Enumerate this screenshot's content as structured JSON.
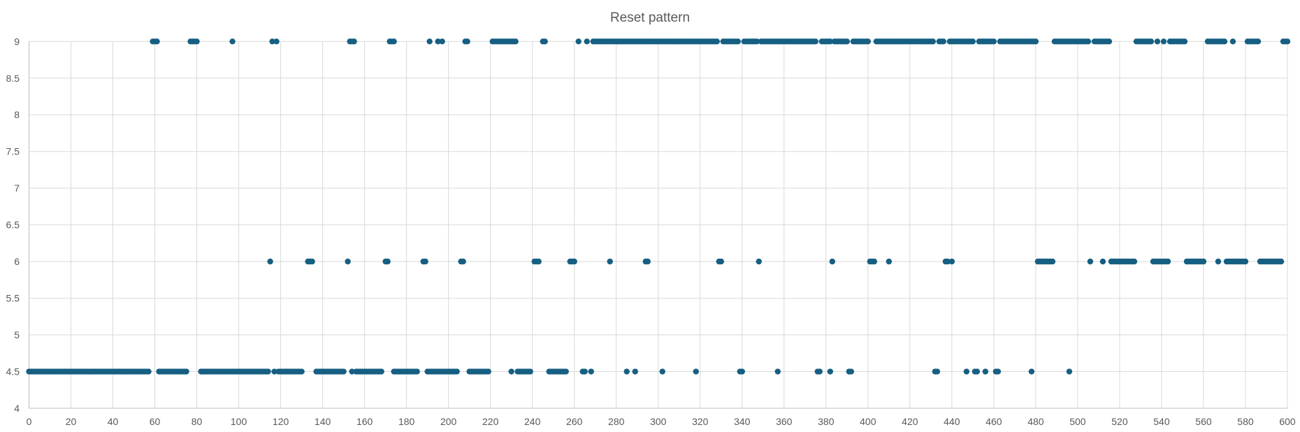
{
  "chart_data": {
    "type": "scatter",
    "title": "Reset pattern",
    "xlabel": "",
    "ylabel": "",
    "xlim": [
      0,
      600
    ],
    "ylim": [
      4,
      9
    ],
    "x_ticks": [
      "0",
      "20",
      "40",
      "60",
      "80",
      "100",
      "120",
      "140",
      "160",
      "180",
      "200",
      "220",
      "240",
      "260",
      "280",
      "300",
      "320",
      "340",
      "360",
      "380",
      "400",
      "420",
      "440",
      "460",
      "480",
      "500",
      "520",
      "540",
      "560",
      "580",
      "600"
    ],
    "y_ticks": [
      "4",
      "4.5",
      "5",
      "5.5",
      "6",
      "6.5",
      "7",
      "7.5",
      "8",
      "8.5",
      "9"
    ],
    "grid": true,
    "legend": "none",
    "marker_color": "#165f82",
    "series": [
      {
        "y": 9,
        "x_runs": [
          [
            59,
            61
          ],
          [
            77,
            80
          ],
          [
            97,
            97
          ],
          [
            116,
            116
          ],
          [
            118,
            118
          ],
          [
            153,
            155
          ],
          [
            172,
            174
          ],
          [
            191,
            191
          ],
          [
            195,
            195
          ],
          [
            197,
            197
          ],
          [
            208,
            209
          ],
          [
            221,
            232
          ],
          [
            245,
            246
          ],
          [
            262,
            262
          ],
          [
            266,
            266
          ],
          [
            269,
            328
          ],
          [
            331,
            338
          ],
          [
            341,
            347
          ],
          [
            349,
            375
          ],
          [
            378,
            382
          ],
          [
            384,
            390
          ],
          [
            393,
            400
          ],
          [
            404,
            431
          ],
          [
            434,
            436
          ],
          [
            439,
            450
          ],
          [
            453,
            460
          ],
          [
            463,
            480
          ],
          [
            489,
            505
          ],
          [
            508,
            515
          ],
          [
            528,
            535
          ],
          [
            538,
            538
          ],
          [
            541,
            541
          ],
          [
            544,
            551
          ],
          [
            562,
            570
          ],
          [
            574,
            574
          ],
          [
            581,
            586
          ],
          [
            598,
            600
          ]
        ]
      },
      {
        "y": 6,
        "x_runs": [
          [
            115,
            115
          ],
          [
            133,
            135
          ],
          [
            152,
            152
          ],
          [
            170,
            171
          ],
          [
            188,
            189
          ],
          [
            206,
            207
          ],
          [
            241,
            243
          ],
          [
            258,
            260
          ],
          [
            277,
            277
          ],
          [
            294,
            295
          ],
          [
            329,
            330
          ],
          [
            348,
            348
          ],
          [
            383,
            383
          ],
          [
            401,
            403
          ],
          [
            410,
            410
          ],
          [
            437,
            438
          ],
          [
            440,
            440
          ],
          [
            481,
            488
          ],
          [
            506,
            506
          ],
          [
            512,
            512
          ],
          [
            516,
            527
          ],
          [
            536,
            543
          ],
          [
            552,
            560
          ],
          [
            567,
            567
          ],
          [
            571,
            580
          ],
          [
            587,
            597
          ]
        ]
      },
      {
        "y": 4.5,
        "x_runs": [
          [
            0,
            57
          ],
          [
            62,
            75
          ],
          [
            82,
            114
          ],
          [
            117,
            117
          ],
          [
            119,
            130
          ],
          [
            137,
            150
          ],
          [
            154,
            154
          ],
          [
            156,
            168
          ],
          [
            174,
            185
          ],
          [
            190,
            204
          ],
          [
            210,
            219
          ],
          [
            230,
            230
          ],
          [
            233,
            239
          ],
          [
            248,
            256
          ],
          [
            264,
            265
          ],
          [
            268,
            268
          ],
          [
            285,
            285
          ],
          [
            289,
            289
          ],
          [
            302,
            302
          ],
          [
            318,
            318
          ],
          [
            339,
            340
          ],
          [
            357,
            357
          ],
          [
            376,
            377
          ],
          [
            382,
            382
          ],
          [
            391,
            392
          ],
          [
            432,
            433
          ],
          [
            447,
            447
          ],
          [
            451,
            452
          ],
          [
            456,
            456
          ],
          [
            461,
            462
          ],
          [
            478,
            478
          ],
          [
            496,
            496
          ]
        ]
      }
    ]
  }
}
